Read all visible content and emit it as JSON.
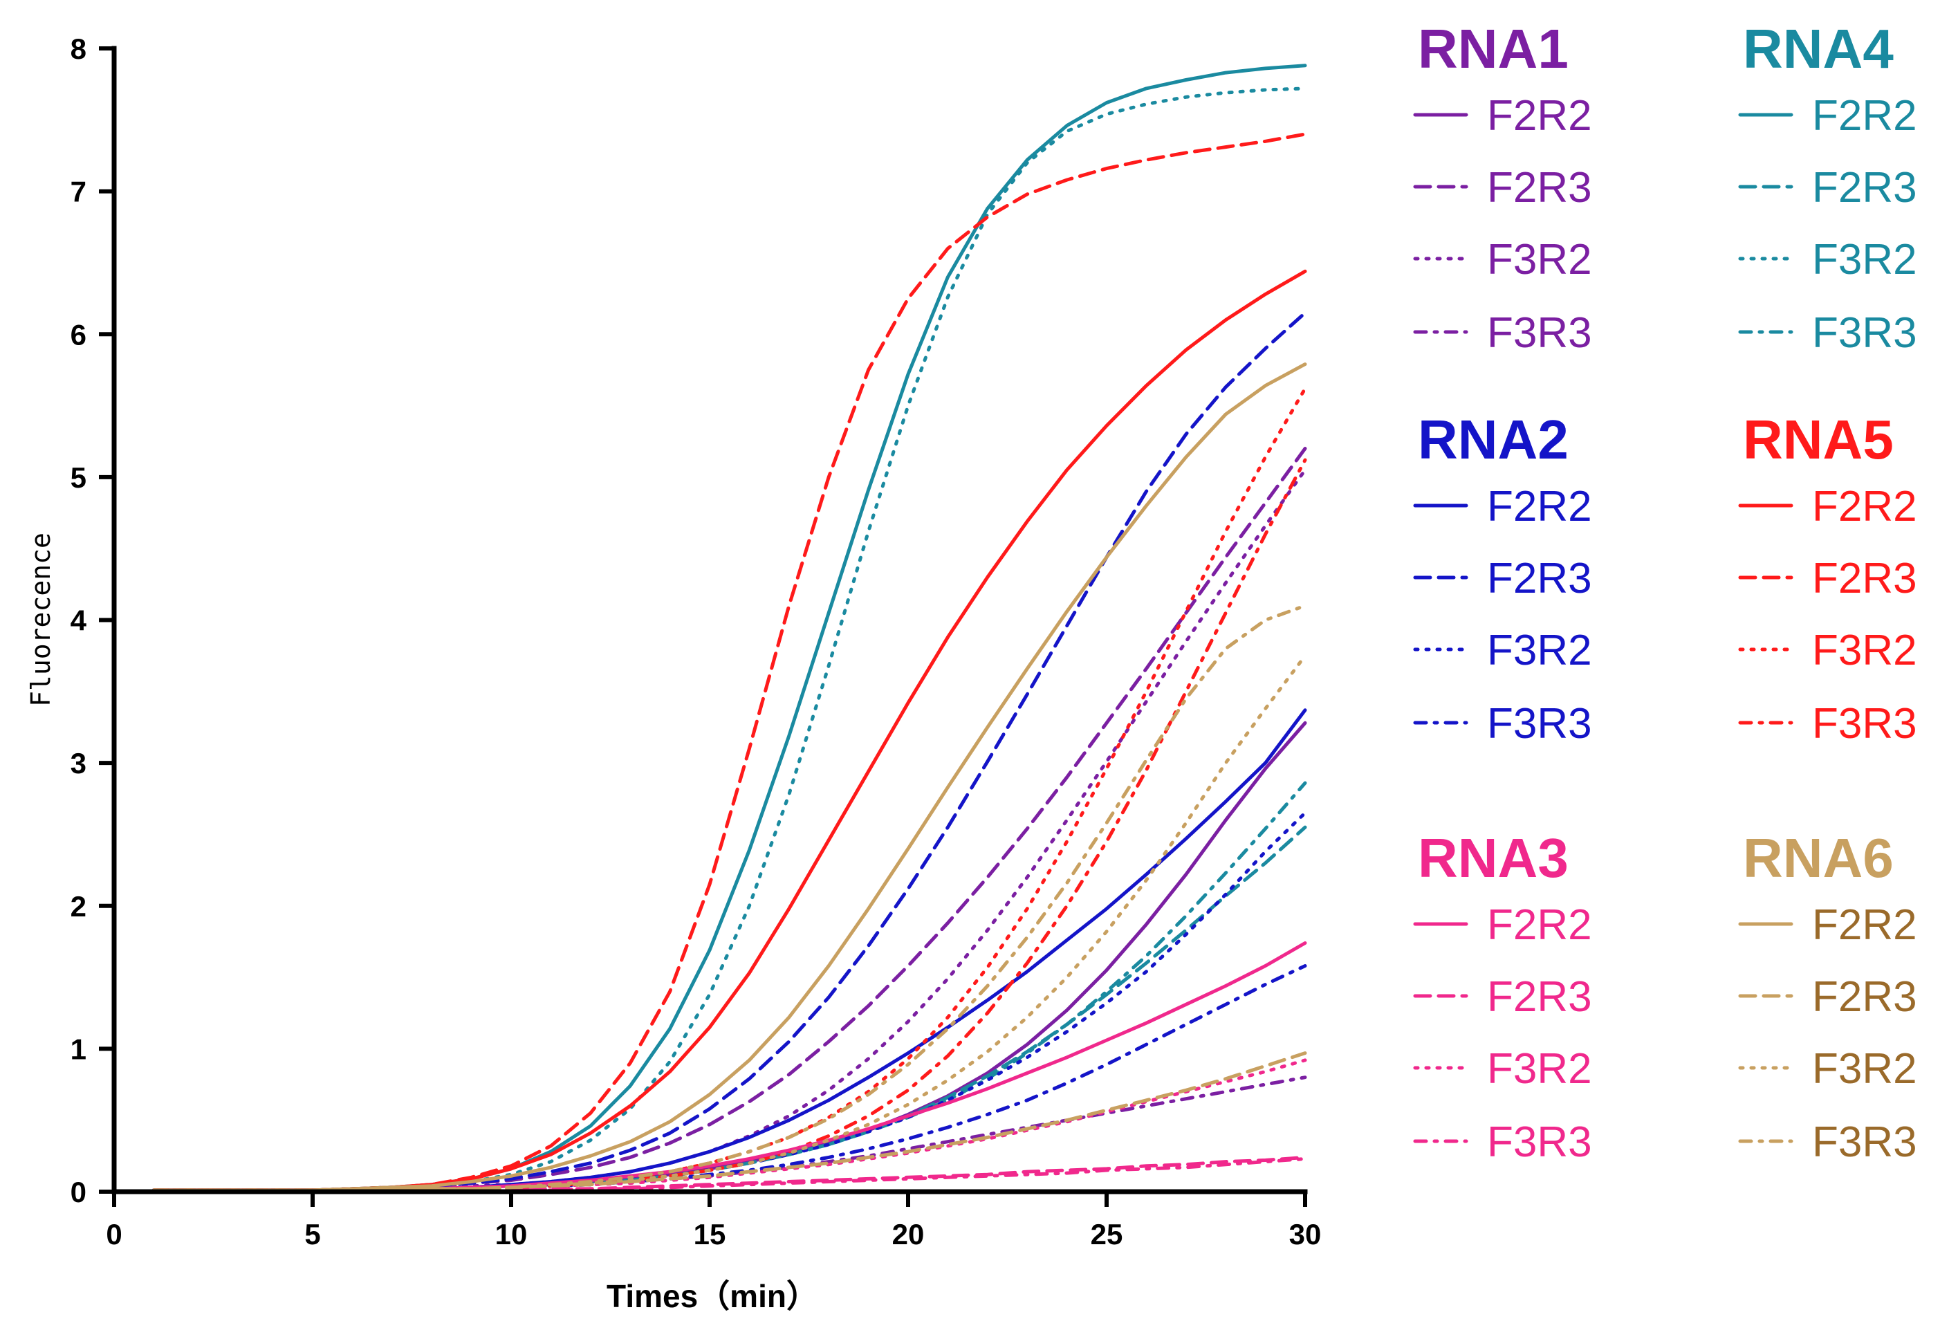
{
  "chart_data": {
    "type": "line",
    "title": "",
    "xlabel": "Times（min）",
    "ylabel": "Fluorecence",
    "xlim": [
      0,
      30
    ],
    "ylim": [
      0,
      8
    ],
    "xticks": [
      0,
      5,
      10,
      15,
      20,
      25,
      30
    ],
    "yticks": [
      0,
      1,
      2,
      3,
      4,
      5,
      6,
      7,
      8
    ],
    "grid": false,
    "legend_position": "right",
    "x": [
      1,
      2,
      3,
      4,
      5,
      6,
      7,
      8,
      9,
      10,
      11,
      12,
      13,
      14,
      15,
      16,
      17,
      18,
      19,
      20,
      21,
      22,
      23,
      24,
      25,
      26,
      27,
      28,
      29,
      30
    ],
    "groups": [
      {
        "name": "RNA1",
        "color": "#7B1FA2",
        "label_color": "#7B1FA2"
      },
      {
        "name": "RNA4",
        "color": "#1A8AA0",
        "label_color": "#1A8AA0"
      },
      {
        "name": "RNA2",
        "color": "#1414C8",
        "label_color": "#1414C8"
      },
      {
        "name": "RNA5",
        "color": "#FF1A1A",
        "label_color": "#FF1A1A"
      },
      {
        "name": "RNA3",
        "color": "#F0288C",
        "label_color": "#F0288C"
      },
      {
        "name": "RNA6",
        "color": "#C8A060",
        "label_color": "#9A6A2A"
      }
    ],
    "series": [
      {
        "group": "RNA1",
        "name": "F2R2",
        "style": "solid",
        "values": [
          0.01,
          0.01,
          0.01,
          0.01,
          0.01,
          0.01,
          0.02,
          0.02,
          0.03,
          0.04,
          0.05,
          0.07,
          0.09,
          0.12,
          0.16,
          0.21,
          0.27,
          0.34,
          0.43,
          0.54,
          0.67,
          0.83,
          1.03,
          1.27,
          1.55,
          1.87,
          2.22,
          2.6,
          2.96,
          3.28
        ]
      },
      {
        "group": "RNA1",
        "name": "F2R3",
        "style": "dashed",
        "values": [
          0.01,
          0.01,
          0.01,
          0.01,
          0.01,
          0.02,
          0.03,
          0.04,
          0.06,
          0.08,
          0.12,
          0.17,
          0.24,
          0.34,
          0.47,
          0.63,
          0.82,
          1.05,
          1.3,
          1.58,
          1.88,
          2.2,
          2.54,
          2.9,
          3.28,
          3.66,
          4.05,
          4.44,
          4.82,
          5.2
        ]
      },
      {
        "group": "RNA1",
        "name": "F3R2",
        "style": "dotted",
        "values": [
          0.01,
          0.01,
          0.01,
          0.01,
          0.01,
          0.01,
          0.02,
          0.03,
          0.04,
          0.05,
          0.07,
          0.1,
          0.14,
          0.2,
          0.28,
          0.39,
          0.53,
          0.71,
          0.93,
          1.19,
          1.49,
          1.83,
          2.2,
          2.6,
          3.01,
          3.43,
          3.85,
          4.26,
          4.66,
          5.05
        ]
      },
      {
        "group": "RNA1",
        "name": "F3R3",
        "style": "dashdot",
        "values": [
          0.01,
          0.01,
          0.01,
          0.01,
          0.01,
          0.01,
          0.01,
          0.02,
          0.02,
          0.03,
          0.04,
          0.05,
          0.07,
          0.09,
          0.11,
          0.14,
          0.17,
          0.21,
          0.25,
          0.3,
          0.35,
          0.4,
          0.45,
          0.5,
          0.55,
          0.6,
          0.65,
          0.7,
          0.75,
          0.8
        ]
      },
      {
        "group": "RNA4",
        "name": "F2R2",
        "style": "solid",
        "values": [
          0.01,
          0.01,
          0.01,
          0.01,
          0.01,
          0.02,
          0.03,
          0.05,
          0.09,
          0.16,
          0.28,
          0.46,
          0.74,
          1.14,
          1.69,
          2.39,
          3.19,
          4.05,
          4.91,
          5.72,
          6.4,
          6.88,
          7.22,
          7.46,
          7.62,
          7.72,
          7.78,
          7.83,
          7.86,
          7.88
        ]
      },
      {
        "group": "RNA4",
        "name": "F2R3",
        "style": "dashed",
        "values": [
          0.01,
          0.01,
          0.01,
          0.01,
          0.01,
          0.01,
          0.01,
          0.02,
          0.02,
          0.03,
          0.04,
          0.06,
          0.08,
          0.11,
          0.15,
          0.2,
          0.26,
          0.33,
          0.42,
          0.53,
          0.66,
          0.81,
          0.98,
          1.17,
          1.38,
          1.6,
          1.83,
          2.07,
          2.3,
          2.55
        ]
      },
      {
        "group": "RNA4",
        "name": "F3R2",
        "style": "dotted",
        "values": [
          0.01,
          0.01,
          0.01,
          0.01,
          0.01,
          0.02,
          0.03,
          0.04,
          0.07,
          0.12,
          0.21,
          0.36,
          0.58,
          0.91,
          1.38,
          2.0,
          2.78,
          3.68,
          4.62,
          5.5,
          6.26,
          6.84,
          7.2,
          7.42,
          7.54,
          7.61,
          7.66,
          7.69,
          7.71,
          7.72
        ]
      },
      {
        "group": "RNA4",
        "name": "F3R3",
        "style": "dashdot",
        "values": [
          0.01,
          0.01,
          0.01,
          0.01,
          0.01,
          0.01,
          0.01,
          0.02,
          0.02,
          0.03,
          0.04,
          0.06,
          0.08,
          0.11,
          0.15,
          0.2,
          0.26,
          0.33,
          0.42,
          0.52,
          0.64,
          0.79,
          0.97,
          1.17,
          1.4,
          1.65,
          1.93,
          2.23,
          2.54,
          2.86
        ]
      },
      {
        "group": "RNA2",
        "name": "F2R2",
        "style": "solid",
        "values": [
          0.01,
          0.01,
          0.01,
          0.01,
          0.01,
          0.01,
          0.02,
          0.02,
          0.03,
          0.05,
          0.07,
          0.1,
          0.14,
          0.2,
          0.28,
          0.38,
          0.5,
          0.64,
          0.8,
          0.97,
          1.15,
          1.34,
          1.54,
          1.76,
          1.98,
          2.22,
          2.47,
          2.73,
          3.0,
          3.37
        ]
      },
      {
        "group": "RNA2",
        "name": "F2R3",
        "style": "dashed",
        "values": [
          0.01,
          0.01,
          0.01,
          0.01,
          0.01,
          0.02,
          0.03,
          0.04,
          0.06,
          0.09,
          0.14,
          0.2,
          0.29,
          0.41,
          0.58,
          0.79,
          1.05,
          1.36,
          1.72,
          2.12,
          2.55,
          3.01,
          3.48,
          3.96,
          4.44,
          4.9,
          5.3,
          5.63,
          5.9,
          6.15
        ]
      },
      {
        "group": "RNA2",
        "name": "F3R2",
        "style": "dotted",
        "values": [
          0.01,
          0.01,
          0.01,
          0.01,
          0.01,
          0.01,
          0.01,
          0.02,
          0.02,
          0.03,
          0.04,
          0.06,
          0.08,
          0.11,
          0.15,
          0.2,
          0.26,
          0.33,
          0.42,
          0.52,
          0.64,
          0.78,
          0.94,
          1.12,
          1.32,
          1.54,
          1.8,
          2.08,
          2.38,
          2.65
        ]
      },
      {
        "group": "RNA2",
        "name": "F3R3",
        "style": "dashdot",
        "values": [
          0.01,
          0.01,
          0.01,
          0.01,
          0.01,
          0.01,
          0.01,
          0.02,
          0.02,
          0.03,
          0.04,
          0.05,
          0.07,
          0.09,
          0.12,
          0.15,
          0.19,
          0.24,
          0.3,
          0.37,
          0.45,
          0.54,
          0.64,
          0.76,
          0.89,
          1.03,
          1.17,
          1.31,
          1.45,
          1.58
        ]
      },
      {
        "group": "RNA5",
        "name": "F2R2",
        "style": "solid",
        "values": [
          0.01,
          0.01,
          0.01,
          0.01,
          0.01,
          0.02,
          0.03,
          0.05,
          0.09,
          0.16,
          0.26,
          0.41,
          0.6,
          0.84,
          1.15,
          1.53,
          1.98,
          2.46,
          2.94,
          3.42,
          3.88,
          4.3,
          4.69,
          5.05,
          5.36,
          5.64,
          5.89,
          6.1,
          6.28,
          6.44
        ]
      },
      {
        "group": "RNA5",
        "name": "F2R3",
        "style": "dashed",
        "values": [
          0.01,
          0.01,
          0.01,
          0.01,
          0.01,
          0.02,
          0.03,
          0.05,
          0.1,
          0.18,
          0.32,
          0.55,
          0.9,
          1.4,
          2.15,
          3.1,
          4.1,
          5.0,
          5.75,
          6.25,
          6.6,
          6.82,
          6.98,
          7.08,
          7.16,
          7.22,
          7.27,
          7.31,
          7.35,
          7.4
        ]
      },
      {
        "group": "RNA5",
        "name": "F3R2",
        "style": "dotted",
        "values": [
          0.01,
          0.01,
          0.01,
          0.01,
          0.01,
          0.01,
          0.01,
          0.02,
          0.02,
          0.03,
          0.05,
          0.07,
          0.1,
          0.14,
          0.2,
          0.28,
          0.38,
          0.52,
          0.7,
          0.93,
          1.22,
          1.57,
          1.98,
          2.45,
          2.96,
          3.5,
          4.06,
          4.62,
          5.14,
          5.62
        ]
      },
      {
        "group": "RNA5",
        "name": "F3R3",
        "style": "dashdot",
        "values": [
          0.01,
          0.01,
          0.01,
          0.01,
          0.01,
          0.01,
          0.01,
          0.02,
          0.02,
          0.03,
          0.04,
          0.06,
          0.08,
          0.11,
          0.15,
          0.2,
          0.28,
          0.39,
          0.53,
          0.71,
          0.95,
          1.25,
          1.6,
          2.0,
          2.45,
          2.95,
          3.5,
          4.05,
          4.6,
          5.12
        ]
      },
      {
        "group": "RNA3",
        "name": "F2R2",
        "style": "solid",
        "values": [
          0.01,
          0.01,
          0.01,
          0.01,
          0.01,
          0.01,
          0.02,
          0.02,
          0.03,
          0.04,
          0.06,
          0.08,
          0.11,
          0.14,
          0.18,
          0.23,
          0.29,
          0.36,
          0.44,
          0.53,
          0.62,
          0.72,
          0.83,
          0.94,
          1.06,
          1.18,
          1.31,
          1.44,
          1.58,
          1.74
        ]
      },
      {
        "group": "RNA3",
        "name": "F2R3",
        "style": "dashed",
        "values": [
          0.0,
          0.0,
          0.0,
          0.0,
          0.0,
          0.0,
          0.0,
          0.01,
          0.01,
          0.01,
          0.02,
          0.02,
          0.03,
          0.04,
          0.05,
          0.06,
          0.07,
          0.08,
          0.09,
          0.1,
          0.11,
          0.12,
          0.14,
          0.15,
          0.16,
          0.18,
          0.19,
          0.21,
          0.22,
          0.24
        ]
      },
      {
        "group": "RNA3",
        "name": "F3R2",
        "style": "dotted",
        "values": [
          0.01,
          0.01,
          0.01,
          0.01,
          0.01,
          0.01,
          0.01,
          0.02,
          0.02,
          0.03,
          0.04,
          0.05,
          0.06,
          0.08,
          0.1,
          0.13,
          0.16,
          0.19,
          0.23,
          0.27,
          0.32,
          0.37,
          0.43,
          0.49,
          0.56,
          0.63,
          0.7,
          0.77,
          0.84,
          0.92
        ]
      },
      {
        "group": "RNA3",
        "name": "F3R3",
        "style": "dashdot",
        "values": [
          0.0,
          0.0,
          0.0,
          0.0,
          0.0,
          0.0,
          0.0,
          0.01,
          0.01,
          0.01,
          0.01,
          0.02,
          0.02,
          0.03,
          0.04,
          0.05,
          0.06,
          0.07,
          0.08,
          0.09,
          0.1,
          0.11,
          0.12,
          0.13,
          0.15,
          0.16,
          0.17,
          0.19,
          0.21,
          0.23
        ]
      },
      {
        "group": "RNA6",
        "name": "F2R2",
        "style": "solid",
        "values": [
          0.01,
          0.01,
          0.01,
          0.01,
          0.01,
          0.02,
          0.03,
          0.04,
          0.07,
          0.11,
          0.17,
          0.25,
          0.35,
          0.49,
          0.68,
          0.92,
          1.22,
          1.58,
          1.98,
          2.4,
          2.83,
          3.25,
          3.66,
          4.06,
          4.44,
          4.8,
          5.14,
          5.44,
          5.64,
          5.79
        ]
      },
      {
        "group": "RNA6",
        "name": "F2R3",
        "style": "dashed",
        "values": [
          0.01,
          0.01,
          0.01,
          0.01,
          0.01,
          0.01,
          0.01,
          0.02,
          0.02,
          0.03,
          0.04,
          0.05,
          0.07,
          0.09,
          0.11,
          0.14,
          0.17,
          0.2,
          0.24,
          0.28,
          0.33,
          0.38,
          0.44,
          0.5,
          0.57,
          0.64,
          0.71,
          0.79,
          0.88,
          0.97
        ]
      },
      {
        "group": "RNA6",
        "name": "F3R2",
        "style": "dotted",
        "values": [
          0.01,
          0.01,
          0.01,
          0.01,
          0.01,
          0.01,
          0.01,
          0.02,
          0.02,
          0.03,
          0.04,
          0.06,
          0.08,
          0.11,
          0.15,
          0.2,
          0.27,
          0.36,
          0.47,
          0.61,
          0.78,
          0.98,
          1.22,
          1.5,
          1.82,
          2.18,
          2.58,
          3.0,
          3.38,
          3.75
        ]
      },
      {
        "group": "RNA6",
        "name": "F3R3",
        "style": "dashdot",
        "values": [
          0.01,
          0.01,
          0.01,
          0.01,
          0.01,
          0.01,
          0.01,
          0.02,
          0.02,
          0.03,
          0.05,
          0.07,
          0.1,
          0.14,
          0.2,
          0.28,
          0.38,
          0.51,
          0.68,
          0.89,
          1.14,
          1.44,
          1.78,
          2.16,
          2.58,
          3.02,
          3.45,
          3.8,
          4.0,
          4.1
        ]
      }
    ]
  }
}
